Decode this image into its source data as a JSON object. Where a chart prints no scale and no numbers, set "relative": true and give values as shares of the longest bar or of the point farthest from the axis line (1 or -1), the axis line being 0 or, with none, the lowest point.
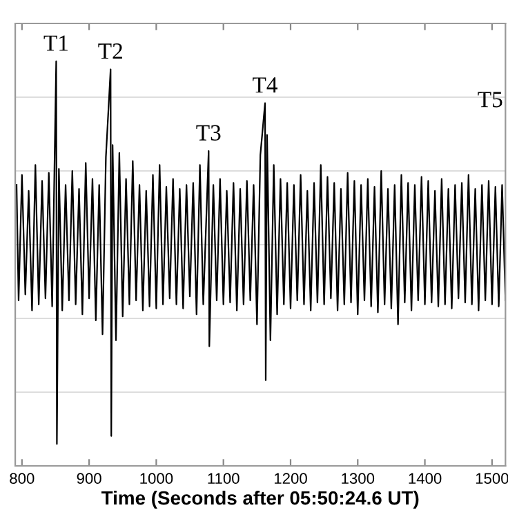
{
  "chart_data": {
    "type": "line",
    "xlabel": "Time (Seconds after 05:50:24.6 UT)",
    "relative": true,
    "color": "#000000",
    "grid": "y",
    "tick_labels": "x",
    "xlim": [
      790,
      1520
    ],
    "xticks": [
      800,
      900,
      1000,
      1100,
      1200,
      1300,
      1400,
      1500
    ],
    "x": [
      792,
      795,
      800,
      805,
      810,
      815,
      820,
      825,
      830,
      835,
      840,
      845,
      851,
      852,
      855,
      860,
      865,
      870,
      875,
      880,
      885,
      890,
      895,
      900,
      905,
      910,
      915,
      920,
      925,
      932,
      933,
      935,
      940,
      945,
      950,
      955,
      960,
      965,
      970,
      975,
      980,
      985,
      990,
      995,
      1000,
      1005,
      1010,
      1015,
      1020,
      1025,
      1030,
      1035,
      1040,
      1045,
      1050,
      1055,
      1060,
      1065,
      1070,
      1078,
      1079,
      1085,
      1090,
      1095,
      1100,
      1105,
      1110,
      1115,
      1120,
      1125,
      1130,
      1135,
      1140,
      1145,
      1150,
      1155,
      1162,
      1163,
      1165,
      1170,
      1175,
      1180,
      1185,
      1190,
      1195,
      1200,
      1205,
      1210,
      1215,
      1220,
      1225,
      1230,
      1235,
      1240,
      1245,
      1250,
      1255,
      1260,
      1265,
      1270,
      1275,
      1280,
      1285,
      1290,
      1295,
      1300,
      1305,
      1310,
      1315,
      1320,
      1325,
      1330,
      1335,
      1340,
      1345,
      1350,
      1355,
      1360,
      1365,
      1370,
      1375,
      1380,
      1385,
      1390,
      1395,
      1400,
      1405,
      1410,
      1415,
      1420,
      1425,
      1430,
      1435,
      1440,
      1445,
      1450,
      1455,
      1460,
      1465,
      1470,
      1475,
      1480,
      1485,
      1490,
      1495,
      1500,
      1505,
      1510,
      1515,
      1520
    ],
    "values": [
      0.3,
      -0.28,
      0.35,
      -0.25,
      0.27,
      -0.33,
      0.4,
      -0.3,
      0.32,
      -0.27,
      0.36,
      -0.31,
      0.92,
      -1.0,
      0.38,
      -0.33,
      0.3,
      -0.28,
      0.37,
      -0.3,
      0.28,
      -0.35,
      0.41,
      -0.27,
      0.33,
      -0.38,
      0.3,
      -0.45,
      0.44,
      0.88,
      -0.96,
      0.5,
      -0.48,
      0.46,
      -0.36,
      0.33,
      -0.3,
      0.42,
      -0.28,
      0.3,
      -0.33,
      0.27,
      -0.31,
      0.35,
      -0.32,
      0.4,
      -0.3,
      0.29,
      -0.27,
      0.33,
      -0.3,
      0.28,
      -0.32,
      0.3,
      -0.26,
      0.31,
      -0.35,
      0.4,
      -0.3,
      0.47,
      -0.51,
      0.3,
      -0.28,
      0.33,
      -0.3,
      0.27,
      -0.29,
      0.31,
      -0.33,
      0.28,
      -0.3,
      0.32,
      -0.28,
      0.3,
      -0.4,
      0.45,
      0.71,
      -0.68,
      0.55,
      -0.48,
      0.4,
      -0.35,
      0.33,
      -0.3,
      0.31,
      -0.32,
      0.3,
      -0.28,
      0.35,
      -0.3,
      0.27,
      -0.33,
      0.31,
      -0.29,
      0.4,
      -0.3,
      0.34,
      -0.27,
      0.31,
      -0.33,
      0.28,
      -0.3,
      0.36,
      -0.29,
      0.32,
      -0.35,
      0.3,
      -0.28,
      0.33,
      -0.31,
      0.29,
      -0.34,
      0.37,
      -0.3,
      0.28,
      -0.32,
      0.3,
      -0.4,
      0.35,
      -0.29,
      0.31,
      -0.33,
      0.3,
      -0.28,
      0.34,
      -0.3,
      0.32,
      -0.29,
      0.27,
      -0.31,
      0.33,
      -0.3,
      0.28,
      -0.32,
      0.3,
      -0.27,
      0.31,
      -0.29,
      0.35,
      -0.3,
      0.28,
      -0.33,
      0.3,
      -0.28,
      0.32,
      -0.3,
      0.29,
      -0.31,
      0.3,
      -0.28
    ],
    "annotations": [
      {
        "text": "T1",
        "x": 851,
        "y": 0.92
      },
      {
        "text": "T2",
        "x": 932,
        "y": 0.88
      },
      {
        "text": "T3",
        "x": 1078,
        "y": 0.47
      },
      {
        "text": "T4",
        "x": 1162,
        "y": 0.71
      },
      "T5"
    ]
  }
}
